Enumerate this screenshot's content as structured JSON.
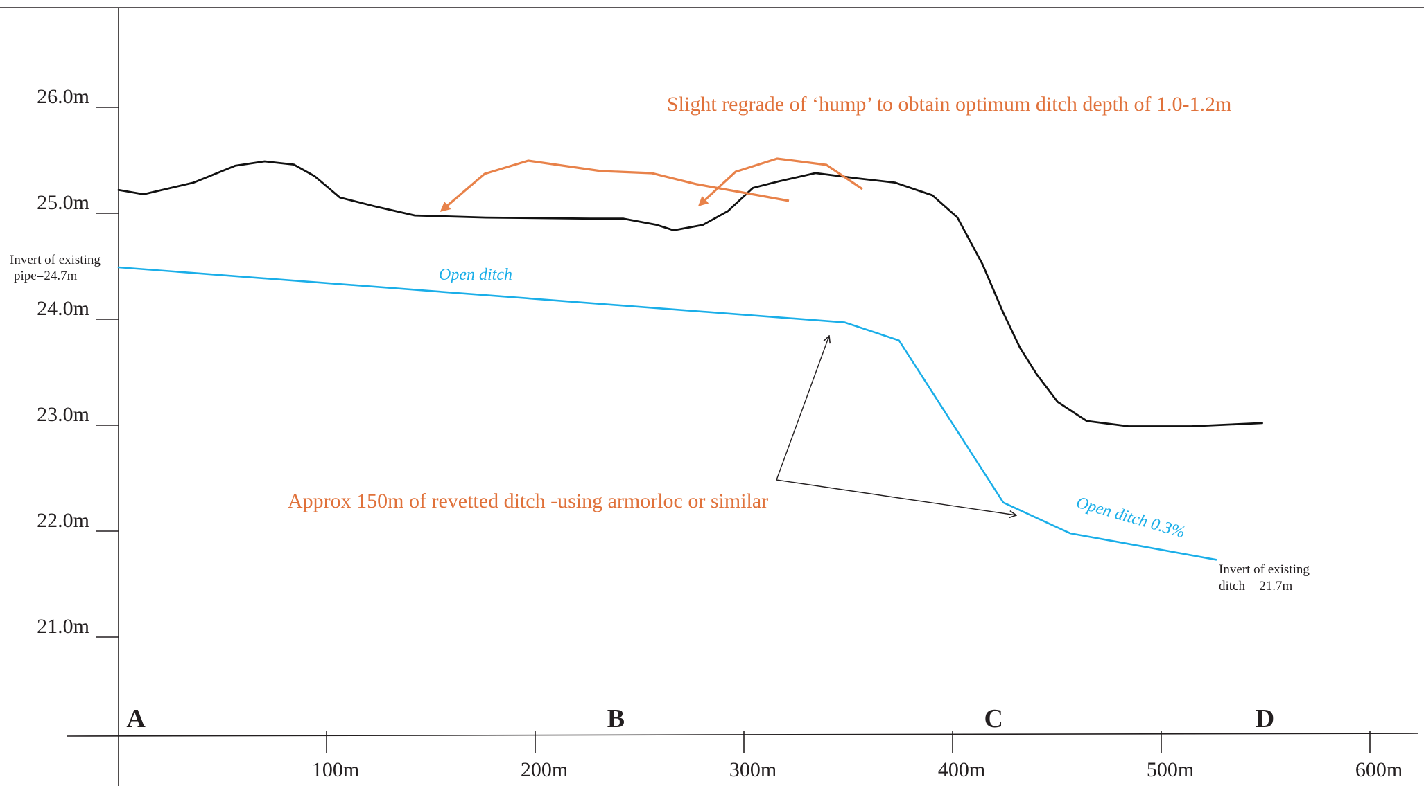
{
  "colors": {
    "axis": "#231f20",
    "ground": "#111111",
    "ditch": "#1aaee8",
    "annotation": "#e8824a",
    "annotation_text": "#e0713a"
  },
  "chart_data": {
    "type": "line",
    "xlim": [
      0,
      600
    ],
    "ylim": [
      20,
      26.9
    ],
    "x_ticks": [
      {
        "value": 100,
        "label": "100m"
      },
      {
        "value": 200,
        "label": "200m"
      },
      {
        "value": 300,
        "label": "300m"
      },
      {
        "value": 400,
        "label": "400m"
      },
      {
        "value": 500,
        "label": "500m"
      },
      {
        "value": 600,
        "label": "600m"
      }
    ],
    "y_ticks": [
      {
        "value": 26.0,
        "label": "26.0m"
      },
      {
        "value": 25.0,
        "label": "25.0m"
      },
      {
        "value": 24.0,
        "label": "24.0m"
      },
      {
        "value": 23.0,
        "label": "23.0m"
      },
      {
        "value": 22.0,
        "label": "22.0m"
      },
      {
        "value": 21.0,
        "label": "21.0m"
      }
    ],
    "points_of_interest": [
      {
        "label": "A",
        "x": 7
      },
      {
        "label": "B",
        "x": 237
      },
      {
        "label": "C",
        "x": 418
      },
      {
        "label": "D",
        "x": 548
      }
    ],
    "series": [
      {
        "x": [
          0,
          12,
          36,
          56,
          70,
          84,
          94,
          106,
          124,
          142,
          176,
          226,
          242,
          258,
          266,
          280,
          292,
          304,
          316,
          334,
          354,
          372,
          390,
          402,
          414,
          424,
          432,
          440,
          450,
          464,
          484,
          514,
          548
        ],
        "y": [
          25.22,
          25.18,
          25.29,
          25.45,
          25.49,
          25.46,
          25.35,
          25.15,
          25.06,
          24.98,
          24.96,
          24.95,
          24.95,
          24.89,
          24.84,
          24.89,
          25.02,
          25.24,
          25.3,
          25.38,
          25.33,
          25.29,
          25.17,
          24.96,
          24.52,
          24.06,
          23.73,
          23.48,
          23.22,
          23.04,
          22.99,
          22.99,
          23.02
        ]
      },
      {
        "x": [
          0,
          348,
          374,
          424,
          456,
          526
        ],
        "y": [
          24.49,
          23.97,
          23.8,
          22.27,
          21.98,
          21.73
        ]
      }
    ],
    "annotations": {
      "invert_pipe": [
        "Invert of existing",
        "pipe=24.7m"
      ],
      "invert_ditch": [
        "Invert of existing",
        "ditch = 21.7m"
      ],
      "open_ditch": "Open ditch",
      "open_ditch_grade": "Open ditch 0.3%",
      "regrade_note": "Slight regrade of ‘hump’ to obtain optimum ditch depth of 1.0-1.2m",
      "revetted_note": "Approx 150m of revetted ditch -using armorloc or similar"
    }
  }
}
